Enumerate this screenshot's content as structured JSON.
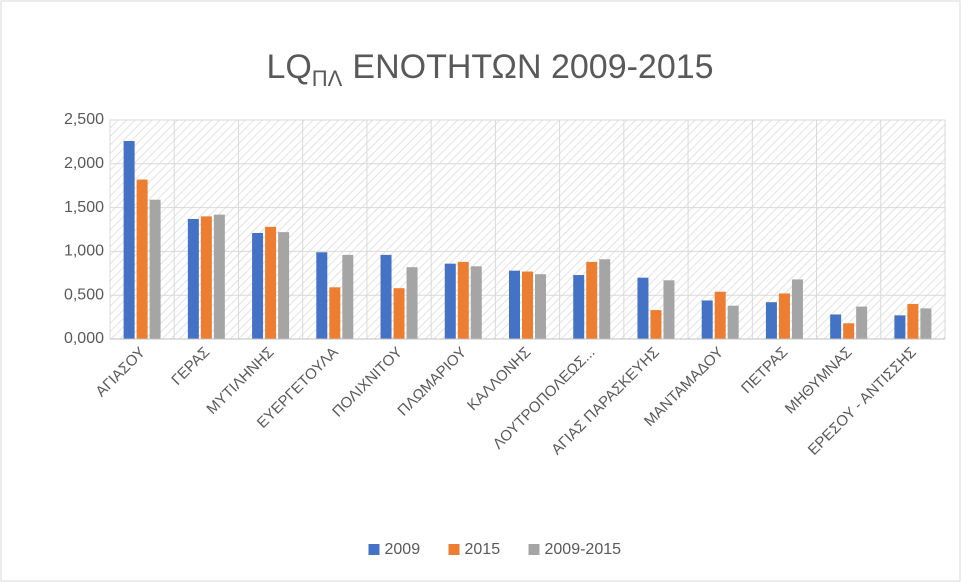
{
  "chart_data": {
    "type": "bar",
    "title": "LQ",
    "title_subscript": "ΠΛ",
    "title_rest": "ΕΝΟΤΗΤΩΝ 2009-2015",
    "categories": [
      "ΑΓΙΑΣΟΥ",
      "ΓΕΡΑΣ",
      "ΜΥΤΙΛΗΝΗΣ",
      "ΕΥΕΡΓΕΤΟΥΛΑ",
      "ΠΟΛΙΧΝΙΤΟΥ",
      "ΠΛΩΜΑΡΙΟΥ",
      "ΚΑΛΛΟΝΗΣ",
      "ΛΟΥΤΡΟΠΟΛΕΩΣ...",
      "ΑΓΙΑΣ ΠΑΡΑΣΚΕΥΗΣ",
      "ΜΑΝΤΑΜΑΔΟΥ",
      "ΠΕΤΡΑΣ",
      "ΜΗΘΥΜΝΑΣ",
      "ΕΡΕΣΟΥ - ΑΝΤΙΣΣΗΣ"
    ],
    "series": [
      {
        "name": "2009",
        "color": "#4472c4",
        "values": [
          2.26,
          1.37,
          1.21,
          0.99,
          0.96,
          0.86,
          0.78,
          0.73,
          0.7,
          0.44,
          0.42,
          0.28,
          0.27
        ]
      },
      {
        "name": "2015",
        "color": "#ed7d31",
        "values": [
          1.82,
          1.4,
          1.28,
          0.59,
          0.58,
          0.88,
          0.77,
          0.88,
          0.33,
          0.54,
          0.52,
          0.18,
          0.4
        ]
      },
      {
        "name": "2009-2015",
        "color": "#a5a5a5",
        "values": [
          1.59,
          1.42,
          1.22,
          0.96,
          0.82,
          0.83,
          0.74,
          0.91,
          0.67,
          0.38,
          0.68,
          0.37,
          0.35
        ]
      }
    ],
    "ylim": [
      0,
      2.5
    ],
    "yticks": [
      {
        "value": 0,
        "label": "0,000"
      },
      {
        "value": 0.5,
        "label": "0,500"
      },
      {
        "value": 1,
        "label": "1,000"
      },
      {
        "value": 1.5,
        "label": "1,500"
      },
      {
        "value": 2,
        "label": "2,000"
      },
      {
        "value": 2.5,
        "label": "2,500"
      }
    ],
    "grid": true,
    "legend": "bottom"
  }
}
